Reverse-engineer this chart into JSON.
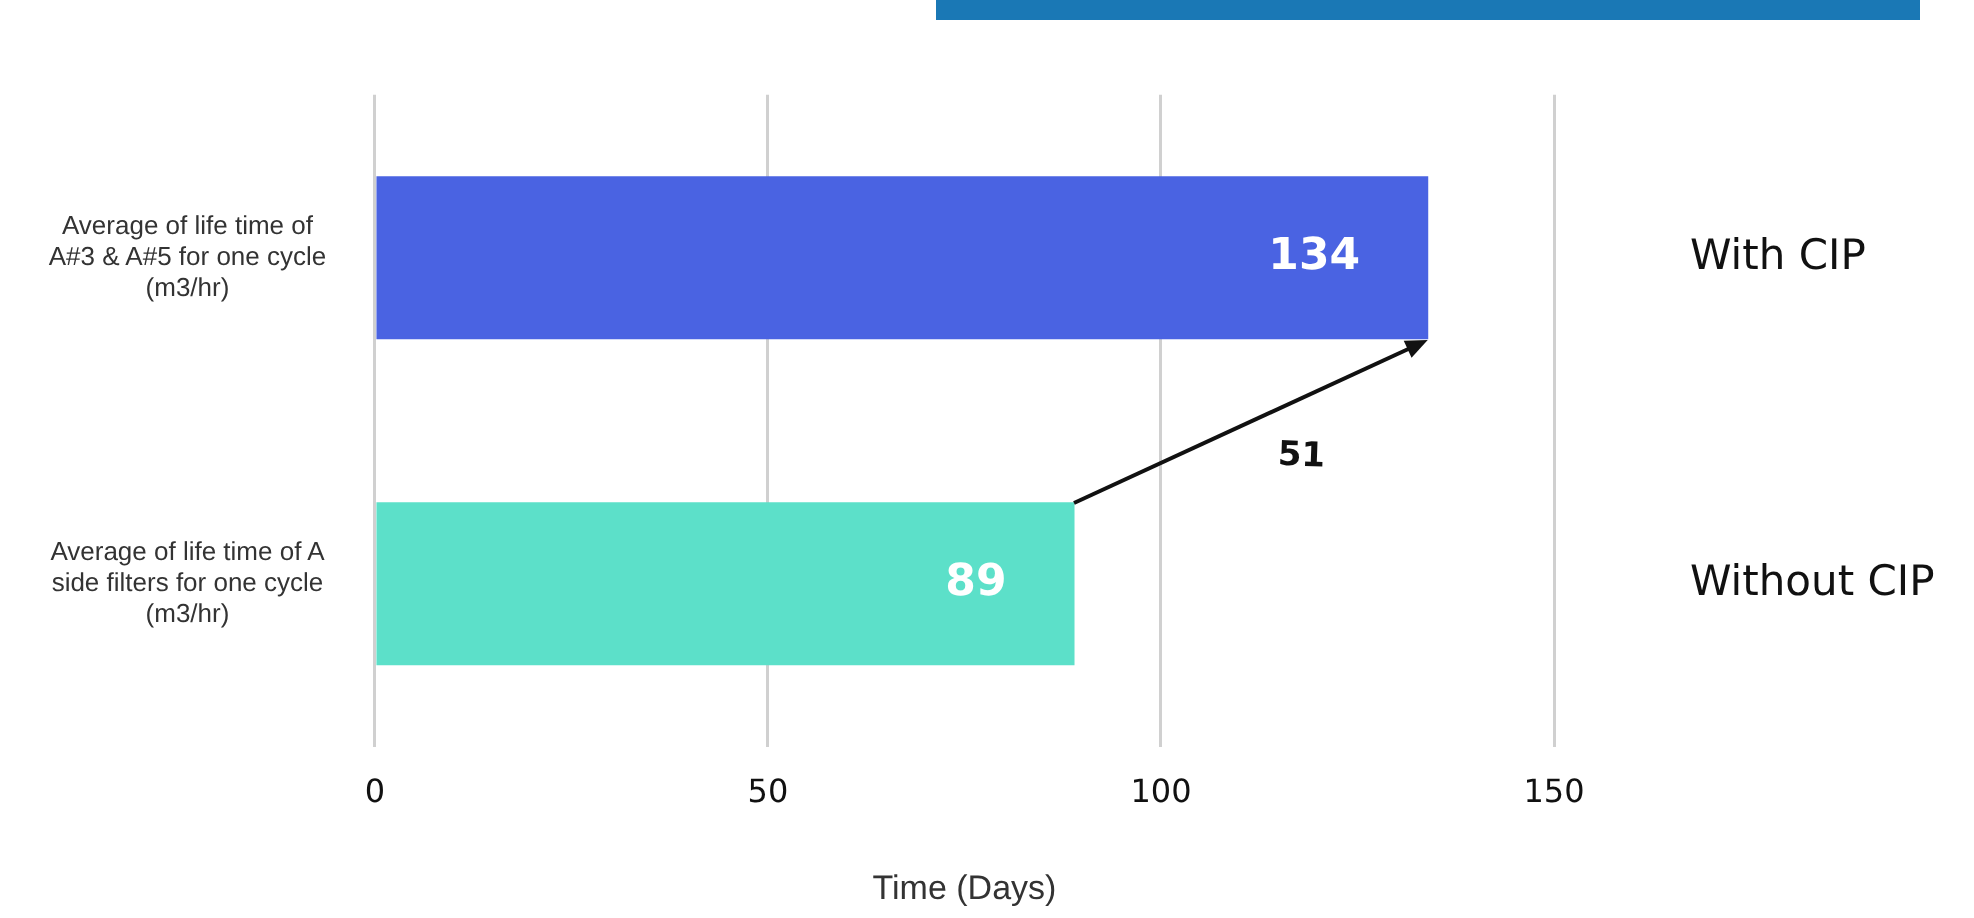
{
  "chart_data": {
    "type": "bar",
    "orientation": "horizontal",
    "xlabel": "Time (Days)",
    "categories": [
      "Average of life time of A#3 & A#5 for one cycle (m3/hr)",
      "Average of life time of A side filters for one cycle (m3/hr)"
    ],
    "values": [
      134,
      89
    ],
    "colors": [
      "#4a63e2",
      "#5ce0c9"
    ],
    "xlim": [
      0,
      150
    ],
    "xticks": [
      0,
      50,
      100,
      150
    ],
    "grid": "x",
    "legend": false,
    "data_labels": true,
    "annotations": [
      "With CIP",
      "Without CIP",
      "51"
    ]
  }
}
